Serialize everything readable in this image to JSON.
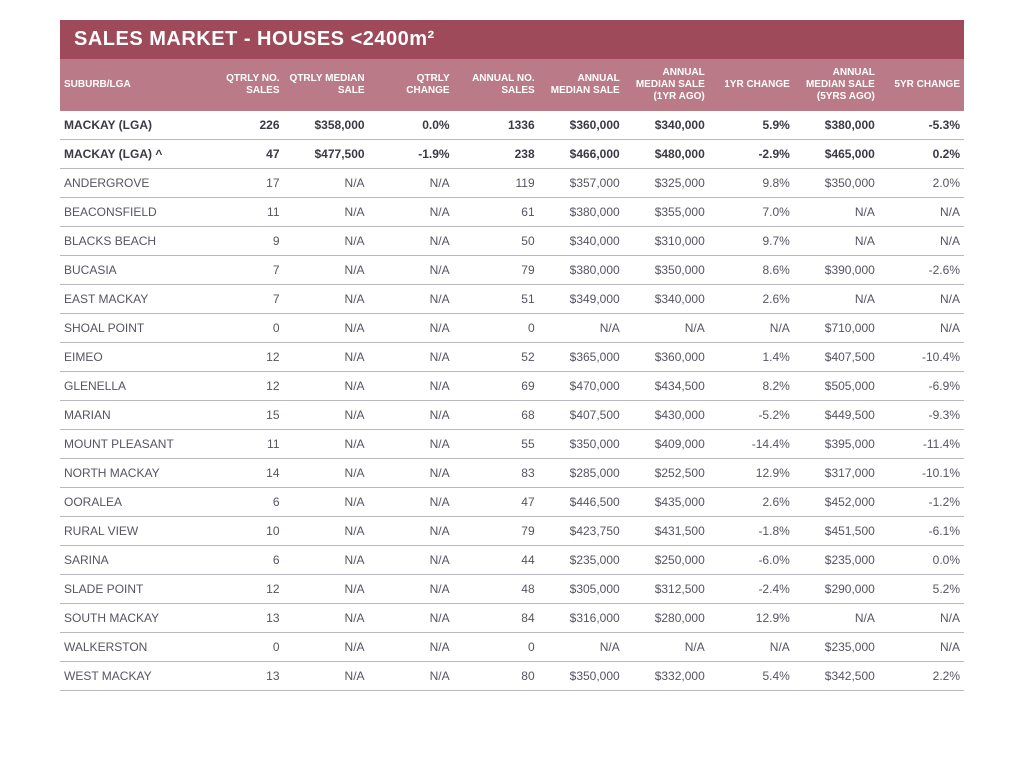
{
  "title": "SALES MARKET - HOUSES <2400m²",
  "columns": [
    "SUBURB/LGA",
    "QTRLY NO. SALES",
    "QTRLY MEDIAN SALE",
    "QTRLY CHANGE",
    "ANNUAL NO. SALES",
    "ANNUAL MEDIAN SALE",
    "ANNUAL MEDIAN SALE (1YR AGO)",
    "1YR CHANGE",
    "ANNUAL MEDIAN SALE (5YRS AGO)",
    "5YR CHANGE"
  ],
  "rows": [
    {
      "bold": true,
      "c": [
        "MACKAY (LGA)",
        "226",
        "$358,000",
        "0.0%",
        "1336",
        "$360,000",
        "$340,000",
        "5.9%",
        "$380,000",
        "-5.3%"
      ]
    },
    {
      "bold": true,
      "c": [
        "MACKAY (LGA)  ^",
        "47",
        "$477,500",
        "-1.9%",
        "238",
        "$466,000",
        "$480,000",
        "-2.9%",
        "$465,000",
        "0.2%"
      ]
    },
    {
      "bold": false,
      "c": [
        "ANDERGROVE",
        "17",
        "N/A",
        "N/A",
        "119",
        "$357,000",
        "$325,000",
        "9.8%",
        "$350,000",
        "2.0%"
      ]
    },
    {
      "bold": false,
      "c": [
        "BEACONSFIELD",
        "11",
        "N/A",
        "N/A",
        "61",
        "$380,000",
        "$355,000",
        "7.0%",
        "N/A",
        "N/A"
      ]
    },
    {
      "bold": false,
      "c": [
        "BLACKS BEACH",
        "9",
        "N/A",
        "N/A",
        "50",
        "$340,000",
        "$310,000",
        "9.7%",
        "N/A",
        "N/A"
      ]
    },
    {
      "bold": false,
      "c": [
        "BUCASIA",
        "7",
        "N/A",
        "N/A",
        "79",
        "$380,000",
        "$350,000",
        "8.6%",
        "$390,000",
        "-2.6%"
      ]
    },
    {
      "bold": false,
      "c": [
        "EAST MACKAY",
        "7",
        "N/A",
        "N/A",
        "51",
        "$349,000",
        "$340,000",
        "2.6%",
        "N/A",
        "N/A"
      ]
    },
    {
      "bold": false,
      "c": [
        "SHOAL POINT",
        "0",
        "N/A",
        "N/A",
        "0",
        "N/A",
        "N/A",
        "N/A",
        "$710,000",
        "N/A"
      ]
    },
    {
      "bold": false,
      "c": [
        "EIMEO",
        "12",
        "N/A",
        "N/A",
        "52",
        "$365,000",
        "$360,000",
        "1.4%",
        "$407,500",
        "-10.4%"
      ]
    },
    {
      "bold": false,
      "c": [
        "GLENELLA",
        "12",
        "N/A",
        "N/A",
        "69",
        "$470,000",
        "$434,500",
        "8.2%",
        "$505,000",
        "-6.9%"
      ]
    },
    {
      "bold": false,
      "c": [
        "MARIAN",
        "15",
        "N/A",
        "N/A",
        "68",
        "$407,500",
        "$430,000",
        "-5.2%",
        "$449,500",
        "-9.3%"
      ]
    },
    {
      "bold": false,
      "c": [
        "MOUNT PLEASANT",
        "11",
        "N/A",
        "N/A",
        "55",
        "$350,000",
        "$409,000",
        "-14.4%",
        "$395,000",
        "-11.4%"
      ]
    },
    {
      "bold": false,
      "c": [
        "NORTH MACKAY",
        "14",
        "N/A",
        "N/A",
        "83",
        "$285,000",
        "$252,500",
        "12.9%",
        "$317,000",
        "-10.1%"
      ]
    },
    {
      "bold": false,
      "c": [
        "OORALEA",
        "6",
        "N/A",
        "N/A",
        "47",
        "$446,500",
        "$435,000",
        "2.6%",
        "$452,000",
        "-1.2%"
      ]
    },
    {
      "bold": false,
      "c": [
        "RURAL VIEW",
        "10",
        "N/A",
        "N/A",
        "79",
        "$423,750",
        "$431,500",
        "-1.8%",
        "$451,500",
        "-6.1%"
      ]
    },
    {
      "bold": false,
      "c": [
        "SARINA",
        "6",
        "N/A",
        "N/A",
        "44",
        "$235,000",
        "$250,000",
        "-6.0%",
        "$235,000",
        "0.0%"
      ]
    },
    {
      "bold": false,
      "c": [
        "SLADE POINT",
        "12",
        "N/A",
        "N/A",
        "48",
        "$305,000",
        "$312,500",
        "-2.4%",
        "$290,000",
        "5.2%"
      ]
    },
    {
      "bold": false,
      "c": [
        "SOUTH MACKAY",
        "13",
        "N/A",
        "N/A",
        "84",
        "$316,000",
        "$280,000",
        "12.9%",
        "N/A",
        "N/A"
      ]
    },
    {
      "bold": false,
      "c": [
        "WALKERSTON",
        "0",
        "N/A",
        "N/A",
        "0",
        "N/A",
        "N/A",
        "N/A",
        "$235,000",
        "N/A"
      ]
    },
    {
      "bold": false,
      "c": [
        "WEST MACKAY",
        "13",
        "N/A",
        "N/A",
        "80",
        "$350,000",
        "$332,000",
        "5.4%",
        "$342,500",
        "2.2%"
      ]
    }
  ],
  "style": {
    "title_bg": "#9e4a5a",
    "header_bg": "#bb7a88",
    "row_border": "#b8b8c0",
    "text_color": "#555560",
    "bold_text_color": "#3a3a44",
    "title_fontsize": 20,
    "header_fontsize": 10,
    "cell_fontsize": 12
  }
}
